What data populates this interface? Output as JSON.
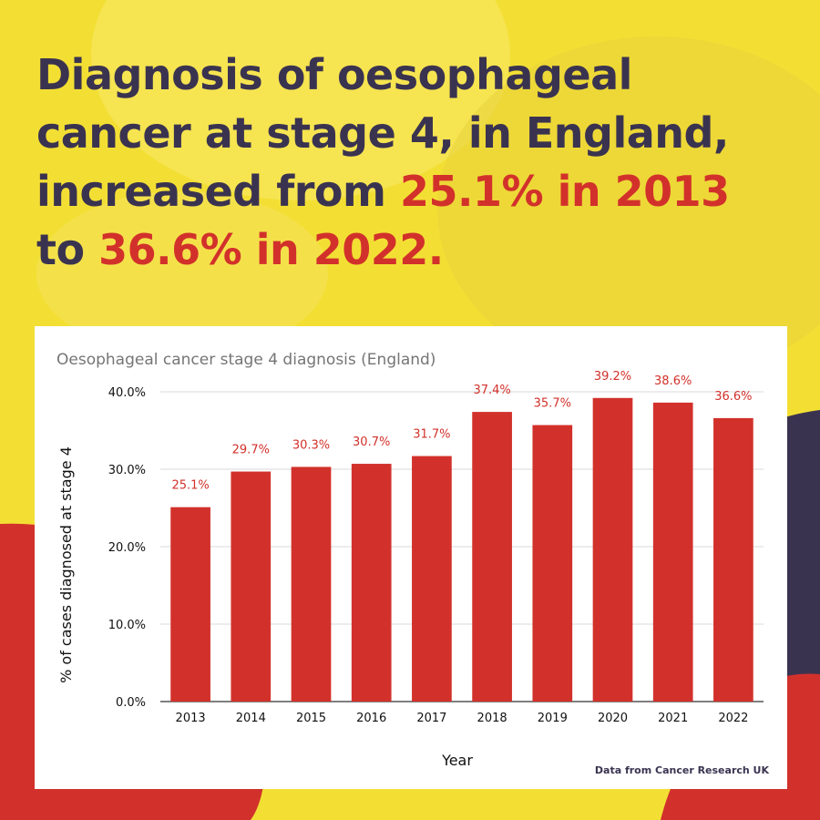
{
  "headline": {
    "line1": "Diagnosis of oesophageal",
    "line2": "cancer at stage 4, in England,",
    "line3_prefix": "increased from ",
    "line3_highlight": "25.1% in 2013",
    "line4_prefix": "to ",
    "line4_highlight": "36.6% in 2022."
  },
  "colors": {
    "background": "#f3df34",
    "text_dark": "#3a3350",
    "accent_red": "#d2312b",
    "bar": "#d2312b"
  },
  "chart_data": {
    "type": "bar",
    "title": "Oesophageal cancer stage 4 diagnosis (England)",
    "xlabel": "Year",
    "ylabel": "% of cases diagnosed at stage 4",
    "categories": [
      "2013",
      "2014",
      "2015",
      "2016",
      "2017",
      "2018",
      "2019",
      "2020",
      "2021",
      "2022"
    ],
    "values": [
      25.1,
      29.7,
      30.3,
      30.7,
      31.7,
      37.4,
      35.7,
      39.2,
      38.6,
      36.6
    ],
    "data_labels": [
      "25.1%",
      "29.7%",
      "30.3%",
      "30.7%",
      "31.7%",
      "37.4%",
      "35.7%",
      "39.2%",
      "38.6%",
      "36.6%"
    ],
    "yticks": [
      0,
      10,
      20,
      30,
      40
    ],
    "ytick_labels": [
      "0.0%",
      "10.0%",
      "20.0%",
      "30.0%",
      "40.0%"
    ],
    "ylim": [
      0,
      40
    ],
    "grid": true,
    "legend": "none"
  },
  "source": "Data from Cancer Research UK"
}
